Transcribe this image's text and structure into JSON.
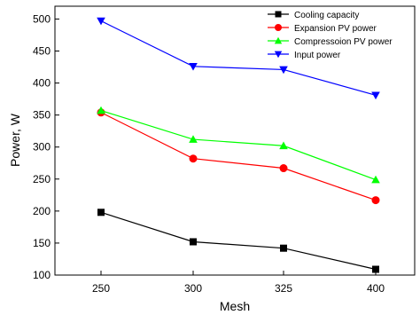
{
  "chart_data": {
    "type": "line",
    "categories": [
      "250",
      "300",
      "325",
      "400"
    ],
    "xlabel": "Mesh",
    "ylabel": "Power, W",
    "ylim": [
      100,
      520
    ],
    "yticks": [
      100,
      150,
      200,
      250,
      300,
      350,
      400,
      450,
      500
    ],
    "grid": false,
    "legend_position": "top-right",
    "series": [
      {
        "name": "Cooling capacity",
        "values": [
          198,
          152,
          142,
          109
        ],
        "color": "#000000",
        "marker": "square"
      },
      {
        "name": "Expansion PV power",
        "values": [
          354,
          282,
          267,
          217
        ],
        "color": "#ff0000",
        "marker": "circle"
      },
      {
        "name": "Compressoion PV power",
        "values": [
          357,
          312,
          302,
          249
        ],
        "color": "#00ff00",
        "marker": "triangle-up"
      },
      {
        "name": "Input power",
        "values": [
          497,
          426,
          421,
          381
        ],
        "color": "#0000ff",
        "marker": "triangle-down"
      }
    ]
  }
}
